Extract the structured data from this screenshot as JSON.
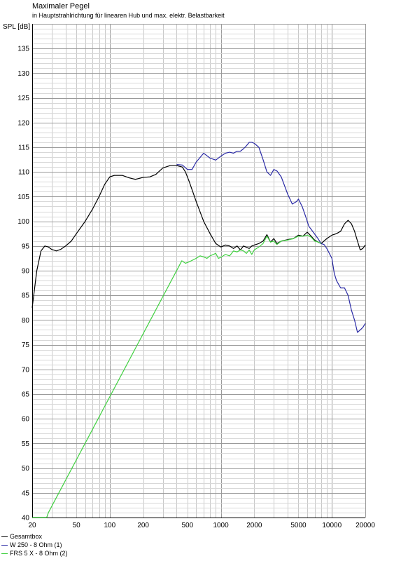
{
  "chart_data": {
    "type": "line",
    "title": "Maximaler Pegel",
    "subtitle": "in Hauptstrahlrichtung für linearen Hub und max. elektr. Belastbarkeit",
    "ylabel": "SPL [dB]",
    "xlabel": "",
    "x_scale": "log",
    "xlim": [
      20,
      20000
    ],
    "ylim": [
      40,
      140
    ],
    "x_ticks": [
      20,
      50,
      100,
      200,
      500,
      1000,
      2000,
      5000,
      10000,
      20000
    ],
    "x_tick_labels": [
      "20",
      "50",
      "100",
      "200",
      "500",
      "1000",
      "2000",
      "5000",
      "10000",
      "20000"
    ],
    "y_ticks": [
      40,
      45,
      50,
      55,
      60,
      65,
      70,
      75,
      80,
      85,
      90,
      95,
      100,
      105,
      110,
      115,
      120,
      125,
      130,
      135
    ],
    "y_tick_labels": [
      "40",
      "45",
      "50",
      "55",
      "60",
      "65",
      "70",
      "75",
      "80",
      "85",
      "90",
      "95",
      "100",
      "105",
      "110",
      "115",
      "120",
      "125",
      "130",
      "135"
    ],
    "grid": true,
    "legend_position": "bottom-left",
    "series": [
      {
        "name": "Gesamtbox",
        "color": "#000000",
        "points": [
          [
            20,
            82.5
          ],
          [
            22,
            90
          ],
          [
            24,
            94
          ],
          [
            26,
            95
          ],
          [
            28,
            94.8
          ],
          [
            30,
            94.3
          ],
          [
            33,
            94
          ],
          [
            36,
            94.3
          ],
          [
            40,
            95
          ],
          [
            45,
            96
          ],
          [
            50,
            97.5
          ],
          [
            60,
            100
          ],
          [
            70,
            102.5
          ],
          [
            80,
            105
          ],
          [
            90,
            107.5
          ],
          [
            100,
            109
          ],
          [
            110,
            109.3
          ],
          [
            120,
            109.3
          ],
          [
            130,
            109.3
          ],
          [
            150,
            108.8
          ],
          [
            170,
            108.5
          ],
          [
            200,
            108.9
          ],
          [
            230,
            109
          ],
          [
            260,
            109.5
          ],
          [
            300,
            110.8
          ],
          [
            350,
            111.3
          ],
          [
            400,
            111.3
          ],
          [
            450,
            111
          ],
          [
            480,
            110
          ],
          [
            520,
            108
          ],
          [
            600,
            104
          ],
          [
            700,
            100
          ],
          [
            800,
            97.5
          ],
          [
            900,
            95.5
          ],
          [
            1000,
            94.8
          ],
          [
            1100,
            95.2
          ],
          [
            1200,
            95
          ],
          [
            1300,
            94.5
          ],
          [
            1400,
            95
          ],
          [
            1500,
            94.2
          ],
          [
            1600,
            95
          ],
          [
            1800,
            94.5
          ],
          [
            1900,
            95
          ],
          [
            2000,
            95.2
          ],
          [
            2200,
            95.5
          ],
          [
            2400,
            96
          ],
          [
            2600,
            97.3
          ],
          [
            2800,
            95.8
          ],
          [
            3000,
            96.5
          ],
          [
            3200,
            95.5
          ],
          [
            3500,
            96
          ],
          [
            4000,
            96.3
          ],
          [
            4500,
            96.5
          ],
          [
            5000,
            97.2
          ],
          [
            5500,
            97
          ],
          [
            6000,
            97.8
          ],
          [
            6500,
            97
          ],
          [
            7000,
            96.2
          ],
          [
            7500,
            95.8
          ],
          [
            8000,
            95.5
          ],
          [
            9000,
            96.5
          ],
          [
            10000,
            97.2
          ],
          [
            11000,
            97.5
          ],
          [
            12000,
            98
          ],
          [
            13000,
            99.5
          ],
          [
            14000,
            100.2
          ],
          [
            15000,
            99.5
          ],
          [
            16000,
            98
          ],
          [
            17000,
            96
          ],
          [
            18000,
            94.2
          ],
          [
            19000,
            94.5
          ],
          [
            20000,
            95.2
          ]
        ]
      },
      {
        "name": "W 250 - 8 Ohm (1)",
        "color": "#2a2aa5",
        "points": [
          [
            400,
            111.5
          ],
          [
            450,
            111.4
          ],
          [
            500,
            110.5
          ],
          [
            550,
            110.5
          ],
          [
            600,
            112
          ],
          [
            700,
            113.8
          ],
          [
            800,
            112.8
          ],
          [
            900,
            112.4
          ],
          [
            1000,
            113.2
          ],
          [
            1100,
            113.8
          ],
          [
            1200,
            114
          ],
          [
            1300,
            113.8
          ],
          [
            1400,
            114.2
          ],
          [
            1500,
            114.2
          ],
          [
            1600,
            114.7
          ],
          [
            1700,
            115.3
          ],
          [
            1800,
            116
          ],
          [
            1900,
            116
          ],
          [
            2000,
            115.8
          ],
          [
            2200,
            115
          ],
          [
            2400,
            112.5
          ],
          [
            2600,
            110
          ],
          [
            2800,
            109.3
          ],
          [
            3000,
            110.5
          ],
          [
            3200,
            110.2
          ],
          [
            3500,
            109
          ],
          [
            4000,
            105.5
          ],
          [
            4400,
            103.5
          ],
          [
            4800,
            104
          ],
          [
            5000,
            104.5
          ],
          [
            5400,
            103
          ],
          [
            5800,
            101
          ],
          [
            6200,
            99
          ],
          [
            6800,
            97.8
          ],
          [
            7500,
            96.5
          ],
          [
            8000,
            95.5
          ],
          [
            8500,
            95.3
          ],
          [
            9000,
            94.5
          ],
          [
            10000,
            92.5
          ],
          [
            10500,
            89.5
          ],
          [
            11000,
            88
          ],
          [
            12000,
            86.5
          ],
          [
            13000,
            86.5
          ],
          [
            14000,
            85
          ],
          [
            15000,
            82
          ],
          [
            16000,
            80
          ],
          [
            17000,
            77.5
          ],
          [
            18000,
            78
          ],
          [
            19000,
            78.5
          ],
          [
            20000,
            79.3
          ]
        ]
      },
      {
        "name": "FRS 5 X - 8 Ohm (2)",
        "color": "#40d040",
        "points": [
          [
            20,
            40
          ],
          [
            24,
            40
          ],
          [
            27,
            40
          ],
          [
            28,
            41
          ],
          [
            445,
            92
          ],
          [
            480,
            91.5
          ],
          [
            520,
            91.8
          ],
          [
            600,
            92.5
          ],
          [
            650,
            93
          ],
          [
            700,
            92.8
          ],
          [
            750,
            92.5
          ],
          [
            800,
            93
          ],
          [
            900,
            93.5
          ],
          [
            950,
            92.5
          ],
          [
            1000,
            92.7
          ],
          [
            1100,
            93.3
          ],
          [
            1200,
            93
          ],
          [
            1300,
            94
          ],
          [
            1400,
            93.8
          ],
          [
            1500,
            94.2
          ],
          [
            1600,
            94
          ],
          [
            1700,
            93.5
          ],
          [
            1800,
            94.2
          ],
          [
            1900,
            93.3
          ],
          [
            2000,
            94.2
          ],
          [
            2200,
            94.8
          ],
          [
            2400,
            95.5
          ],
          [
            2600,
            97
          ],
          [
            2800,
            95.8
          ],
          [
            3000,
            96
          ],
          [
            3200,
            95.3
          ],
          [
            3500,
            96
          ],
          [
            4000,
            96.2
          ],
          [
            4500,
            96.5
          ],
          [
            5000,
            97
          ],
          [
            5500,
            97
          ],
          [
            6000,
            97.2
          ],
          [
            6500,
            96.8
          ],
          [
            7000,
            96
          ],
          [
            7500,
            95.8
          ],
          [
            8000,
            95.5
          ]
        ]
      }
    ]
  }
}
